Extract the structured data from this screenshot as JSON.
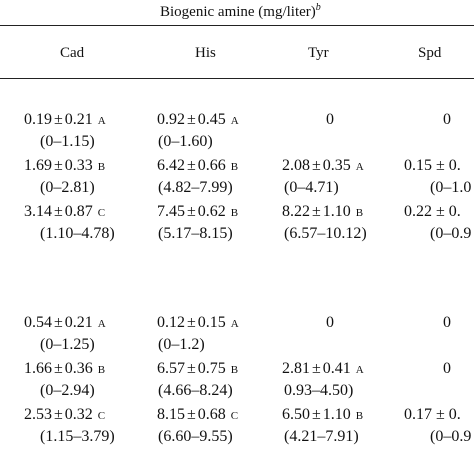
{
  "header": {
    "title": "Biogenic amine (mg/liter)",
    "footnote_mark": "b",
    "columns": [
      "Cad",
      "His",
      "Tyr",
      "Spd"
    ]
  },
  "section1": [
    {
      "cad": {
        "mean": "0.19",
        "sd": "0.21",
        "group": "A",
        "range": "(0–1.15)"
      },
      "his": {
        "mean": "0.92",
        "sd": "0.45",
        "group": "A",
        "range": "(0–1.60)"
      },
      "tyr": {
        "value": "0"
      },
      "spd": {
        "value": "0"
      }
    },
    {
      "cad": {
        "mean": "1.69",
        "sd": "0.33",
        "group": "B",
        "range": "(0–2.81)"
      },
      "his": {
        "mean": "6.42",
        "sd": "0.66",
        "group": "B",
        "range": "(4.82–7.99)"
      },
      "tyr": {
        "mean": "2.08",
        "sd": "0.35",
        "group": "A",
        "range": "(0–4.71)"
      },
      "spd": {
        "partial": "0.15 ± 0.",
        "range_partial": "(0–1.0"
      }
    },
    {
      "cad": {
        "mean": "3.14",
        "sd": "0.87",
        "group": "C",
        "range": "(1.10–4.78)"
      },
      "his": {
        "mean": "7.45",
        "sd": "0.62",
        "group": "B",
        "range": "(5.17–8.15)"
      },
      "tyr": {
        "mean": "8.22",
        "sd": "1.10",
        "group": "B",
        "range": "(6.57–10.12)"
      },
      "spd": {
        "partial": "0.22 ± 0.",
        "range_partial": "(0–0.9"
      }
    }
  ],
  "section2": [
    {
      "cad": {
        "mean": "0.54",
        "sd": "0.21",
        "group": "A",
        "range": "(0–1.25)"
      },
      "his": {
        "mean": "0.12",
        "sd": "0.15",
        "group": "A",
        "range": "(0–1.2)"
      },
      "tyr": {
        "value": "0"
      },
      "spd": {
        "value": "0"
      }
    },
    {
      "cad": {
        "mean": "1.66",
        "sd": "0.36",
        "group": "B",
        "range": "(0–2.94)"
      },
      "his": {
        "mean": "6.57",
        "sd": "0.75",
        "group": "B",
        "range": "(4.66–8.24)"
      },
      "tyr": {
        "mean": "2.81",
        "sd": "0.41",
        "group": "A",
        "range": "0.93–4.50)"
      },
      "spd": {
        "value": "0"
      }
    },
    {
      "cad": {
        "mean": "2.53",
        "sd": "0.32",
        "group": "C",
        "range": "(1.15–3.79)"
      },
      "his": {
        "mean": "8.15",
        "sd": "0.68",
        "group": "C",
        "range": "(6.60–9.55)"
      },
      "tyr": {
        "mean": "6.50",
        "sd": "1.10",
        "group": "B",
        "range": "(4.21–7.91)"
      },
      "spd": {
        "partial": "0.17 ± 0.",
        "range_partial": "(0–0.9"
      }
    }
  ],
  "symbols": {
    "plus_minus": "±"
  }
}
